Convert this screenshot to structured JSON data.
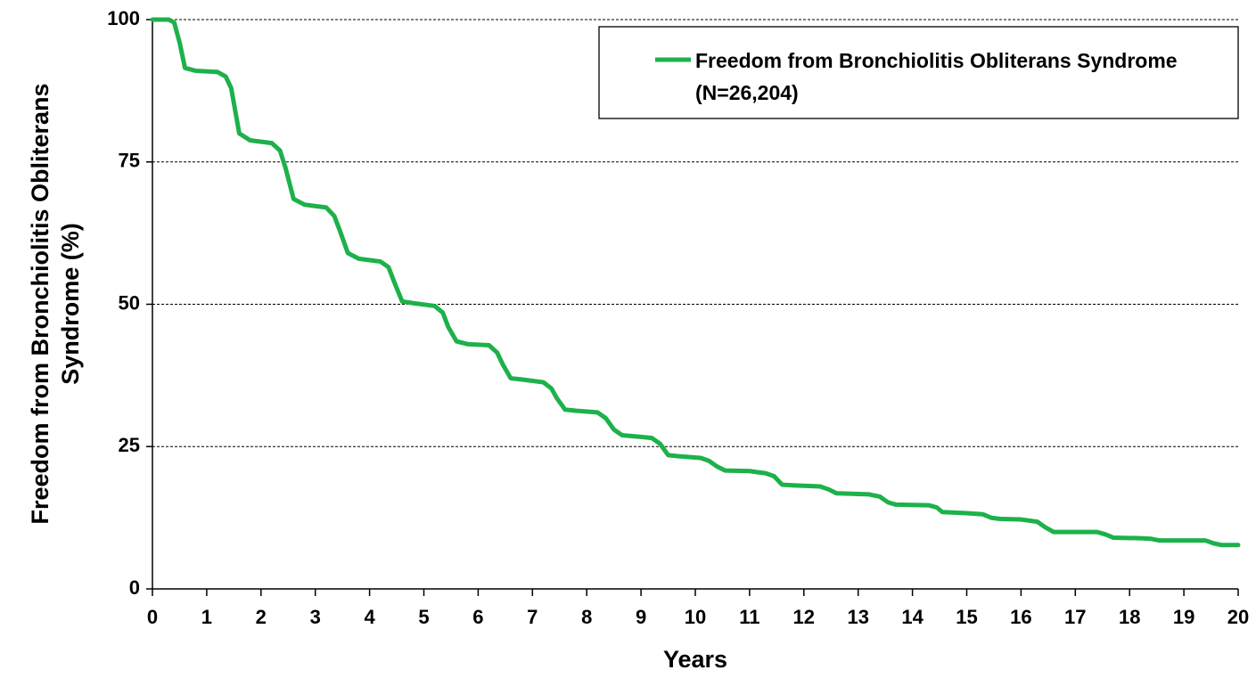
{
  "chart_data": {
    "type": "line",
    "x_label": "Years",
    "y_label": "Freedom from Bronchiolitis Obliterans Syndrome (%)",
    "x": [
      0,
      0.3,
      0.4,
      0.5,
      0.6,
      0.8,
      1.2,
      1.35,
      1.45,
      1.6,
      1.8,
      2.2,
      2.35,
      2.45,
      2.6,
      2.8,
      3.2,
      3.35,
      3.45,
      3.6,
      3.8,
      4.2,
      4.35,
      4.45,
      4.6,
      4.8,
      5.2,
      5.35,
      5.45,
      5.6,
      5.8,
      6.2,
      6.35,
      6.45,
      6.6,
      6.8,
      7.2,
      7.35,
      7.45,
      7.6,
      7.8,
      8.2,
      8.35,
      8.5,
      8.65,
      9.0,
      9.2,
      9.35,
      9.5,
      9.7,
      10.1,
      10.25,
      10.4,
      10.55,
      11.0,
      11.3,
      11.45,
      11.6,
      11.8,
      12.3,
      12.45,
      12.6,
      13.2,
      13.4,
      13.55,
      13.7,
      14.3,
      14.45,
      14.55,
      15.0,
      15.3,
      15.45,
      15.6,
      16.0,
      16.3,
      16.45,
      16.6,
      17.4,
      17.55,
      17.7,
      18.2,
      18.4,
      18.55,
      19.4,
      19.55,
      19.7,
      20
    ],
    "series": [
      {
        "name": "Freedom from Bronchiolitis Obliterans Syndrome (N=26,204)",
        "color": "#1db14b",
        "values": [
          100,
          100,
          99.5,
          96,
          91.5,
          91,
          90.8,
          90,
          88,
          80,
          78.8,
          78.3,
          77,
          74,
          68.5,
          67.5,
          67,
          65.5,
          63,
          59,
          58,
          57.5,
          56.5,
          54,
          50.5,
          50.2,
          49.7,
          48.5,
          46,
          43.5,
          43,
          42.8,
          41.5,
          39.5,
          37,
          36.8,
          36.3,
          35.2,
          33.5,
          31.5,
          31.3,
          31,
          30,
          28,
          27,
          26.7,
          26.5,
          25.5,
          23.5,
          23.3,
          23,
          22.5,
          21.5,
          20.8,
          20.7,
          20.3,
          19.8,
          18.3,
          18.2,
          18,
          17.5,
          16.8,
          16.6,
          16.2,
          15.2,
          14.8,
          14.7,
          14.3,
          13.5,
          13.3,
          13.1,
          12.5,
          12.3,
          12.2,
          11.8,
          10.8,
          10,
          10,
          9.6,
          9,
          8.9,
          8.8,
          8.5,
          8.5,
          8,
          7.7,
          7.7
        ]
      }
    ],
    "xlim": [
      0,
      20
    ],
    "xticks": [
      0,
      1,
      2,
      3,
      4,
      5,
      6,
      7,
      8,
      9,
      10,
      11,
      12,
      13,
      14,
      15,
      16,
      17,
      18,
      19,
      20
    ],
    "ylim": [
      0,
      100
    ],
    "yticks": [
      0,
      25,
      50,
      75,
      100
    ],
    "grid": true,
    "legend": "upper right"
  }
}
